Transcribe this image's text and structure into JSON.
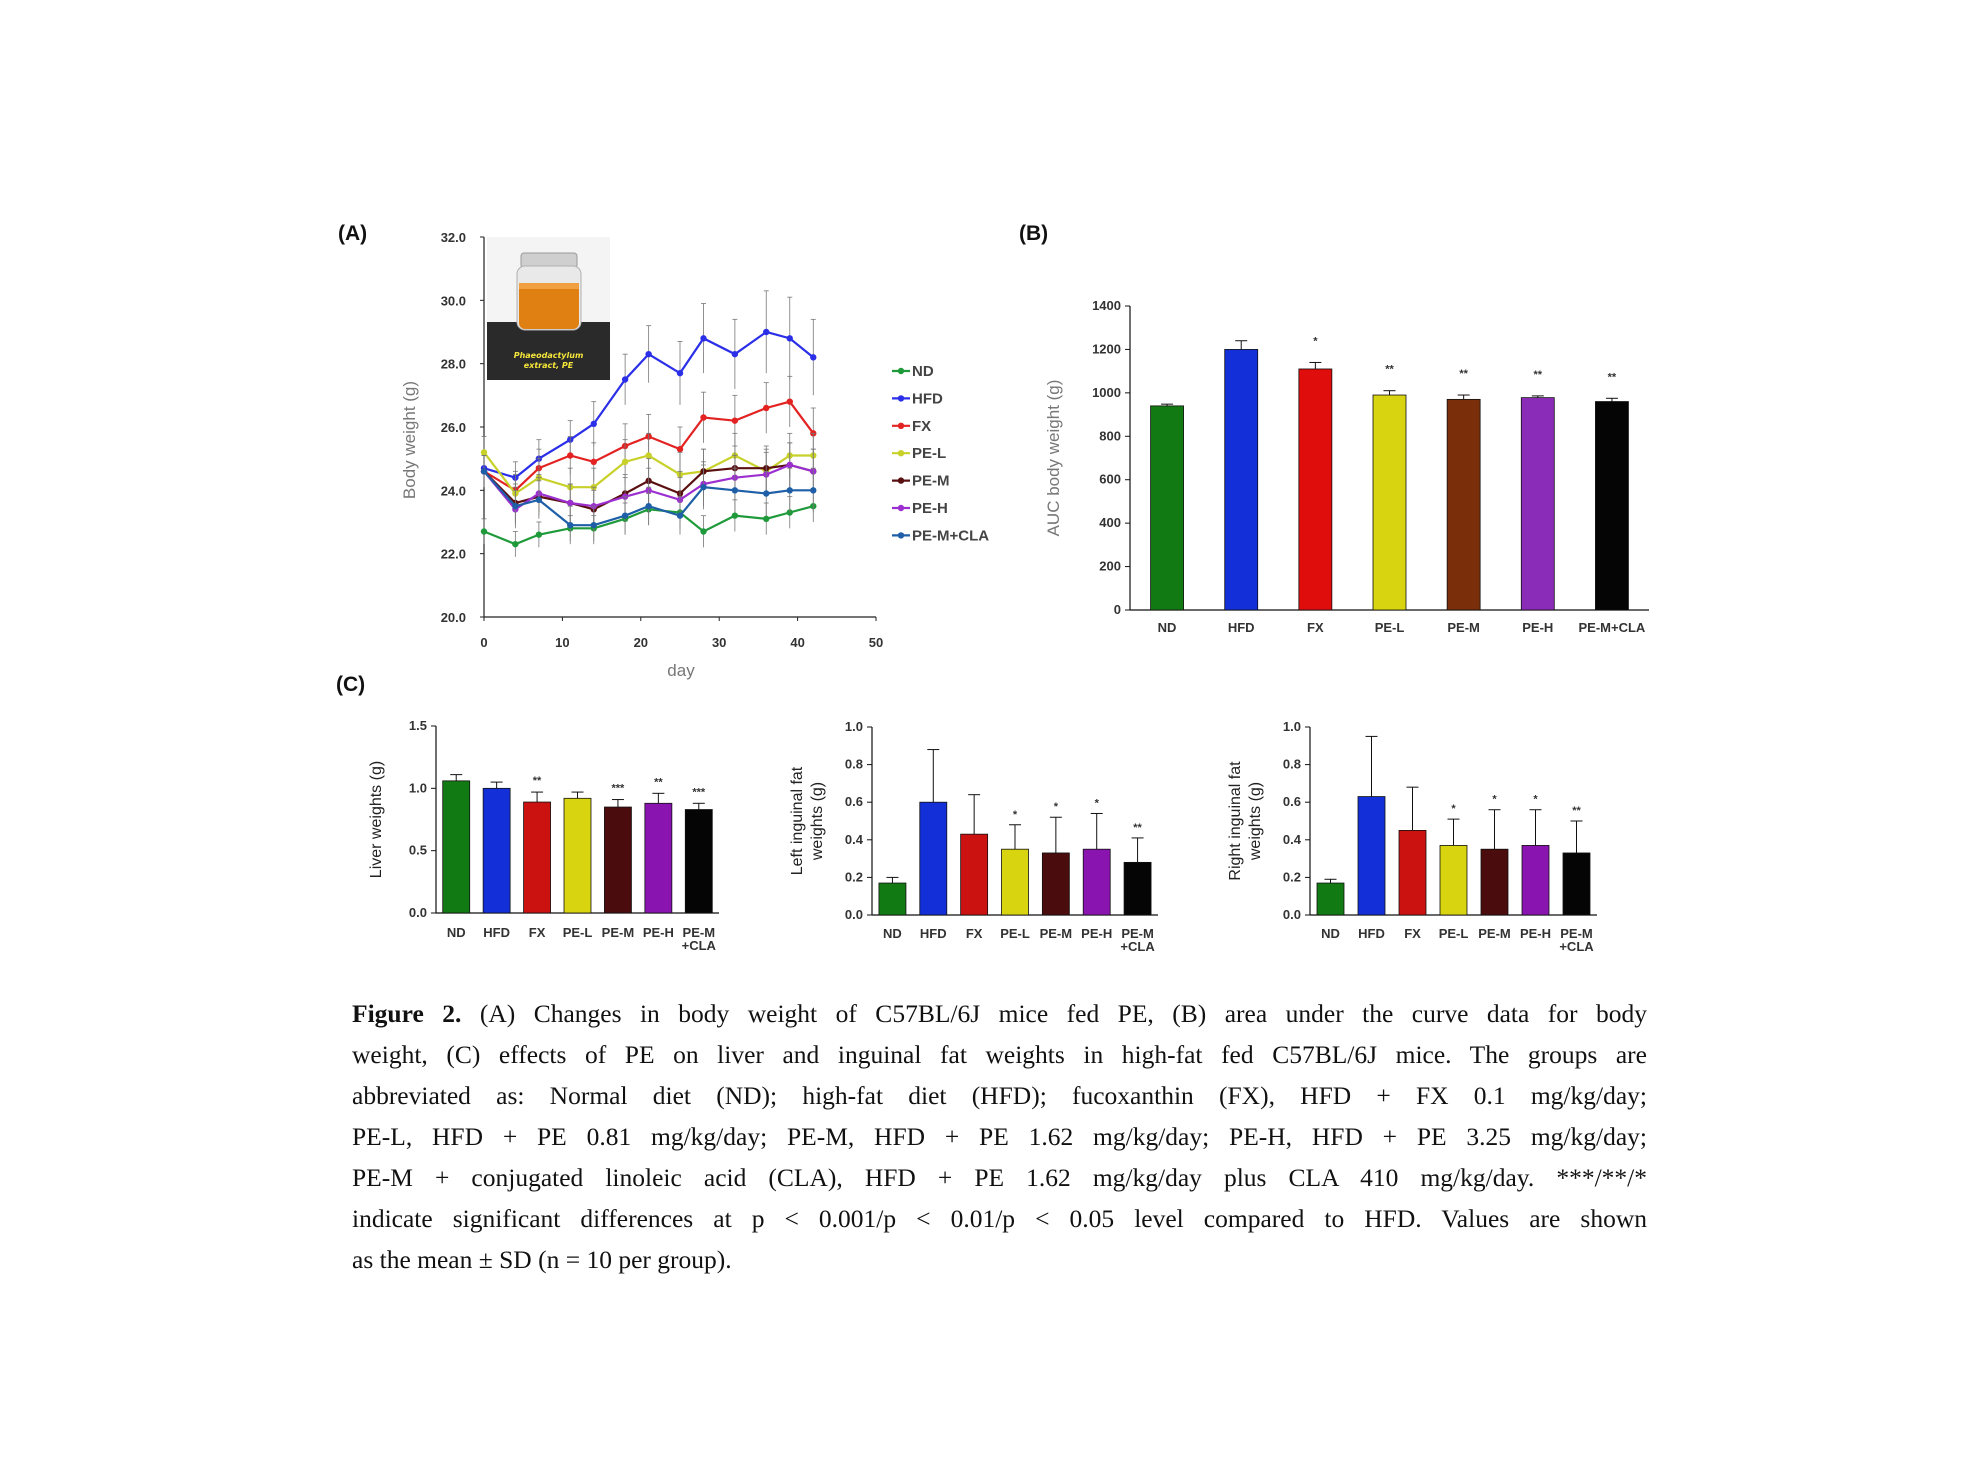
{
  "panels": {
    "A": "(A)",
    "B": "(B)",
    "C": "(C)"
  },
  "photo_label": {
    "line1": "Phaeodactylum",
    "line2": "extract, PE"
  },
  "chart_data": [
    {
      "id": "A",
      "type": "line",
      "xlabel": "day",
      "ylabel": "Body weight (g)",
      "xlim": [
        0,
        50
      ],
      "ylim": [
        20.0,
        32.0
      ],
      "xticks": [
        "0",
        "10",
        "20",
        "30",
        "40",
        "50"
      ],
      "yticks": [
        "20.0",
        "22.0",
        "24.0",
        "26.0",
        "28.0",
        "30.0",
        "32.0"
      ],
      "legend_position": "right",
      "x": [
        0,
        4,
        7,
        11,
        14,
        18,
        21,
        25,
        28,
        32,
        36,
        39,
        42
      ],
      "series": [
        {
          "name": "ND",
          "color": "#1f9a3a",
          "values": [
            22.7,
            22.3,
            22.6,
            22.8,
            22.8,
            23.1,
            23.4,
            23.3,
            22.7,
            23.2,
            23.1,
            23.3,
            23.5
          ],
          "err": [
            0.4,
            0.4,
            0.4,
            0.4,
            0.4,
            0.5,
            0.5,
            0.5,
            0.5,
            0.5,
            0.5,
            0.5,
            0.5
          ]
        },
        {
          "name": "HFD",
          "color": "#2b2fe8",
          "values": [
            24.7,
            24.4,
            25.0,
            25.6,
            26.1,
            27.5,
            28.3,
            27.7,
            28.8,
            28.3,
            29.0,
            28.8,
            28.2
          ],
          "err": [
            0.5,
            0.5,
            0.6,
            0.6,
            0.7,
            0.8,
            0.9,
            1.0,
            1.1,
            1.1,
            1.3,
            1.3,
            1.2
          ]
        },
        {
          "name": "FX",
          "color": "#e32222",
          "values": [
            24.6,
            24.0,
            24.7,
            25.1,
            24.9,
            25.4,
            25.7,
            25.3,
            26.3,
            26.2,
            26.6,
            26.8,
            25.8
          ],
          "err": [
            0.5,
            0.6,
            0.6,
            0.6,
            0.6,
            0.7,
            0.7,
            0.7,
            0.8,
            0.8,
            0.8,
            0.8,
            0.8
          ]
        },
        {
          "name": "PE-L",
          "color": "#c8d12a",
          "values": [
            25.2,
            23.9,
            24.4,
            24.1,
            24.1,
            24.9,
            25.1,
            24.5,
            24.6,
            25.1,
            24.6,
            25.1,
            25.1
          ],
          "err": [
            0.5,
            0.6,
            0.6,
            0.6,
            0.6,
            0.7,
            0.7,
            0.7,
            0.7,
            0.7,
            0.7,
            0.7,
            0.7
          ]
        },
        {
          "name": "PE-M",
          "color": "#5a1010",
          "values": [
            24.6,
            23.6,
            23.8,
            23.6,
            23.4,
            23.9,
            24.3,
            23.9,
            24.6,
            24.7,
            24.7,
            24.8,
            24.6
          ],
          "err": [
            0.5,
            0.6,
            0.6,
            0.6,
            0.6,
            0.6,
            0.7,
            0.7,
            0.7,
            0.7,
            0.7,
            0.7,
            0.7
          ]
        },
        {
          "name": "PE-H",
          "color": "#9c2fd0",
          "values": [
            24.6,
            23.4,
            23.9,
            23.6,
            23.5,
            23.8,
            24.0,
            23.7,
            24.2,
            24.4,
            24.5,
            24.8,
            24.6
          ],
          "err": [
            0.5,
            0.6,
            0.6,
            0.6,
            0.6,
            0.6,
            0.7,
            0.7,
            0.7,
            0.7,
            0.7,
            0.7,
            0.7
          ]
        },
        {
          "name": "PE-M+CLA",
          "color": "#1e5fa8",
          "values": [
            24.6,
            23.5,
            23.7,
            22.9,
            22.9,
            23.2,
            23.5,
            23.2,
            24.1,
            24.0,
            23.9,
            24.0,
            24.0
          ],
          "err": [
            0.5,
            0.6,
            0.6,
            0.6,
            0.6,
            0.6,
            0.6,
            0.6,
            0.7,
            0.7,
            0.7,
            0.7,
            0.7
          ]
        }
      ]
    },
    {
      "id": "B",
      "type": "bar",
      "ylabel": "AUC body weight (g)",
      "ylim": [
        0,
        1400
      ],
      "yticks": [
        "0",
        "200",
        "400",
        "600",
        "800",
        "1000",
        "1200",
        "1400"
      ],
      "categories": [
        "ND",
        "HFD",
        "FX",
        "PE-L",
        "PE-M",
        "PE-H",
        "PE-M+CLA"
      ],
      "values": [
        940,
        1200,
        1110,
        990,
        970,
        978,
        960
      ],
      "errors": [
        8,
        40,
        30,
        20,
        20,
        8,
        15
      ],
      "significance": [
        "",
        "",
        "*",
        "**",
        "**",
        "**",
        "**"
      ],
      "colors": [
        "#127a12",
        "#1330d8",
        "#e00d0d",
        "#d9d410",
        "#7a2e0a",
        "#8a2cb8",
        "#050505"
      ]
    },
    {
      "id": "C1",
      "type": "bar",
      "ylabel": "Liver weights (g)",
      "ylim": [
        0.0,
        1.5
      ],
      "yticks": [
        "0.0",
        "0.5",
        "1.0",
        "1.5"
      ],
      "categories": [
        "ND",
        "HFD",
        "FX",
        "PE-L",
        "PE-M",
        "PE-H",
        "PE-M\n+CLA"
      ],
      "values": [
        1.06,
        1.0,
        0.89,
        0.92,
        0.85,
        0.88,
        0.83
      ],
      "errors": [
        0.05,
        0.05,
        0.08,
        0.05,
        0.06,
        0.08,
        0.05
      ],
      "significance": [
        "",
        "",
        "**",
        "",
        "***",
        "**",
        "***"
      ],
      "colors": [
        "#127a12",
        "#1330d8",
        "#cc1111",
        "#d9d410",
        "#4a0c0c",
        "#8a14b0",
        "#050505"
      ]
    },
    {
      "id": "C2",
      "type": "bar",
      "ylabel": "Left inguinal fat\nweights (g)",
      "ylim": [
        0.0,
        1.0
      ],
      "yticks": [
        "0.0",
        "0.2",
        "0.4",
        "0.6",
        "0.8",
        "1.0"
      ],
      "categories": [
        "ND",
        "HFD",
        "FX",
        "PE-L",
        "PE-M",
        "PE-H",
        "PE-M\n+CLA"
      ],
      "values": [
        0.17,
        0.6,
        0.43,
        0.35,
        0.33,
        0.35,
        0.28
      ],
      "errors": [
        0.03,
        0.28,
        0.21,
        0.13,
        0.19,
        0.19,
        0.13
      ],
      "significance": [
        "",
        "",
        "",
        "*",
        "*",
        "*",
        "**"
      ],
      "colors": [
        "#127a12",
        "#1330d8",
        "#cc1111",
        "#d9d410",
        "#4a0c0c",
        "#8a14b0",
        "#050505"
      ]
    },
    {
      "id": "C3",
      "type": "bar",
      "ylabel": "Right inguinal fat\nweights (g)",
      "ylim": [
        0.0,
        1.0
      ],
      "yticks": [
        "0.0",
        "0.2",
        "0.4",
        "0.6",
        "0.8",
        "1.0"
      ],
      "categories": [
        "ND",
        "HFD",
        "FX",
        "PE-L",
        "PE-M",
        "PE-H",
        "PE-M\n+CLA"
      ],
      "values": [
        0.17,
        0.63,
        0.45,
        0.37,
        0.35,
        0.37,
        0.33
      ],
      "errors": [
        0.02,
        0.32,
        0.23,
        0.14,
        0.21,
        0.19,
        0.17
      ],
      "significance": [
        "",
        "",
        "",
        "*",
        "*",
        "*",
        "**"
      ],
      "colors": [
        "#127a12",
        "#1330d8",
        "#cc1111",
        "#d9d410",
        "#4a0c0c",
        "#8a14b0",
        "#050505"
      ]
    }
  ],
  "caption": {
    "figure_label": "Figure 2.",
    "line1": "(A) Changes in body weight of C57BL/6J mice fed PE, (B) area under the curve data for body",
    "line2": "weight, (C) effects of PE on liver and inguinal fat weights in high-fat fed C57BL/6J mice. The groups are",
    "line3": "abbreviated as: Normal diet (ND); high-fat diet (HFD); fucoxanthin (FX), HFD + FX 0.1 mg/kg/day;",
    "line4": "PE-L, HFD + PE 0.81 mg/kg/day; PE-M, HFD + PE 1.62 mg/kg/day; PE-H, HFD + PE 3.25 mg/kg/day;",
    "line5": "PE-M + conjugated linoleic acid (CLA), HFD + PE 1.62 mg/kg/day plus CLA 410 mg/kg/day. ***/**/*",
    "line6": "indicate significant differences at p < 0.001/p < 0.01/p < 0.05 level compared to HFD. Values are shown",
    "line7": "as the mean ± SD (n = 10 per group)."
  }
}
